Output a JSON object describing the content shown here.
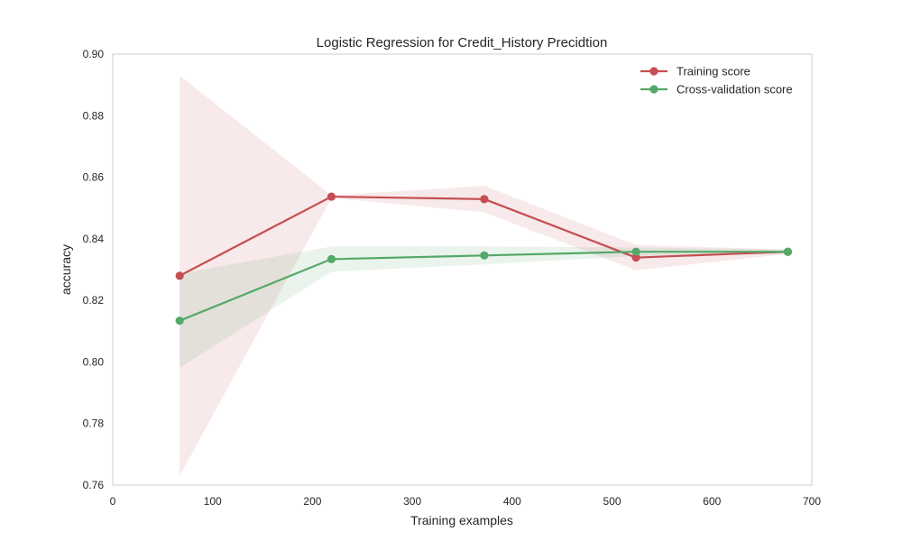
{
  "chart_data": {
    "type": "line",
    "title": "Logistic Regression for Credit_History Precidtion",
    "xlabel": "Training examples",
    "ylabel": "accuracy",
    "xlim": [
      0,
      700
    ],
    "ylim": [
      0.76,
      0.9
    ],
    "xticks": [
      0,
      100,
      200,
      300,
      400,
      500,
      600,
      700
    ],
    "xtick_labels": [
      "0",
      "100",
      "200",
      "300",
      "400",
      "500",
      "600",
      "700"
    ],
    "yticks": [
      0.76,
      0.78,
      0.8,
      0.82,
      0.84,
      0.86,
      0.88,
      0.9
    ],
    "ytick_labels": [
      "0.76",
      "0.78",
      "0.80",
      "0.82",
      "0.84",
      "0.86",
      "0.88",
      "0.90"
    ],
    "grid": false,
    "legend_position": "top-right",
    "x": [
      67,
      219,
      372,
      524,
      676
    ],
    "series": [
      {
        "name": "Training score",
        "color": "#c44e52",
        "values": [
          0.828,
          0.8537,
          0.8529,
          0.8339,
          0.8358
        ],
        "band_upper": [
          0.893,
          0.8541,
          0.8572,
          0.838,
          0.8365
        ],
        "band_lower": [
          0.763,
          0.8533,
          0.8486,
          0.8298,
          0.8351
        ]
      },
      {
        "name": "Cross-validation score",
        "color": "#55a868",
        "values": [
          0.8134,
          0.8334,
          0.8346,
          0.8358,
          0.8358
        ],
        "band_upper": [
          0.8287,
          0.8375,
          0.8375,
          0.8372,
          0.8365
        ],
        "band_lower": [
          0.7981,
          0.8293,
          0.8317,
          0.8344,
          0.8351
        ]
      }
    ]
  }
}
